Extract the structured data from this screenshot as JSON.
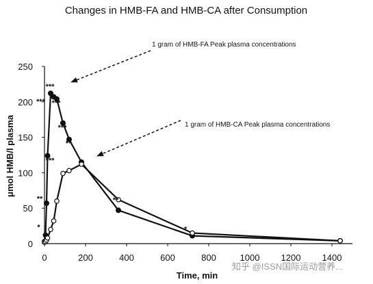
{
  "watermark": "知乎 @ISSN国际运动营养...",
  "chart_data": {
    "type": "line",
    "title": "Changes in HMB-FA and HMB-CA after Consumption",
    "xlabel": "Time, min",
    "ylabel": "μmol HMB/l plasma",
    "xlim": [
      0,
      1500
    ],
    "ylim": [
      0,
      250
    ],
    "xticks": [
      0,
      200,
      400,
      600,
      800,
      1000,
      1200,
      1400
    ],
    "yticks": [
      0,
      50,
      100,
      150,
      200,
      250
    ],
    "grid": false,
    "series": [
      {
        "marker": "filled-circle",
        "x": [
          0,
          5,
          10,
          15,
          30,
          45,
          60,
          90,
          120,
          180,
          360,
          720,
          1440
        ],
        "y": [
          3,
          12,
          57,
          124,
          212,
          207,
          204,
          170,
          147,
          115,
          47,
          11,
          4
        ]
      },
      {
        "marker": "open-circle",
        "x": [
          0,
          5,
          10,
          15,
          30,
          45,
          60,
          90,
          120,
          180,
          360,
          720,
          1440
        ],
        "y": [
          2,
          3,
          5,
          8,
          20,
          32,
          60,
          99,
          103,
          112,
          62,
          15,
          4
        ]
      }
    ],
    "annotations": [
      {
        "text": "1 gram of HMB-FA Peak plasma concentrations"
      },
      {
        "text": "1 gram of HMB-CA Peak plasma concentrations"
      }
    ],
    "significance_labels": [
      {
        "text": "*",
        "x": 5,
        "y": 20
      },
      {
        "text": "**",
        "x": 10,
        "y": 60
      },
      {
        "text": "***",
        "x": 15,
        "y": 197
      },
      {
        "text": "***",
        "x": 60,
        "y": 218
      },
      {
        "text": "***",
        "x": 90,
        "y": 195
      },
      {
        "text": "***",
        "x": 120,
        "y": 160
      },
      {
        "text": "**",
        "x": 150,
        "y": 138
      },
      {
        "text": "***",
        "x": 60,
        "y": 114
      },
      {
        "text": "**",
        "x": 380,
        "y": 58
      },
      {
        "text": "*",
        "x": 720,
        "y": 17
      }
    ]
  }
}
